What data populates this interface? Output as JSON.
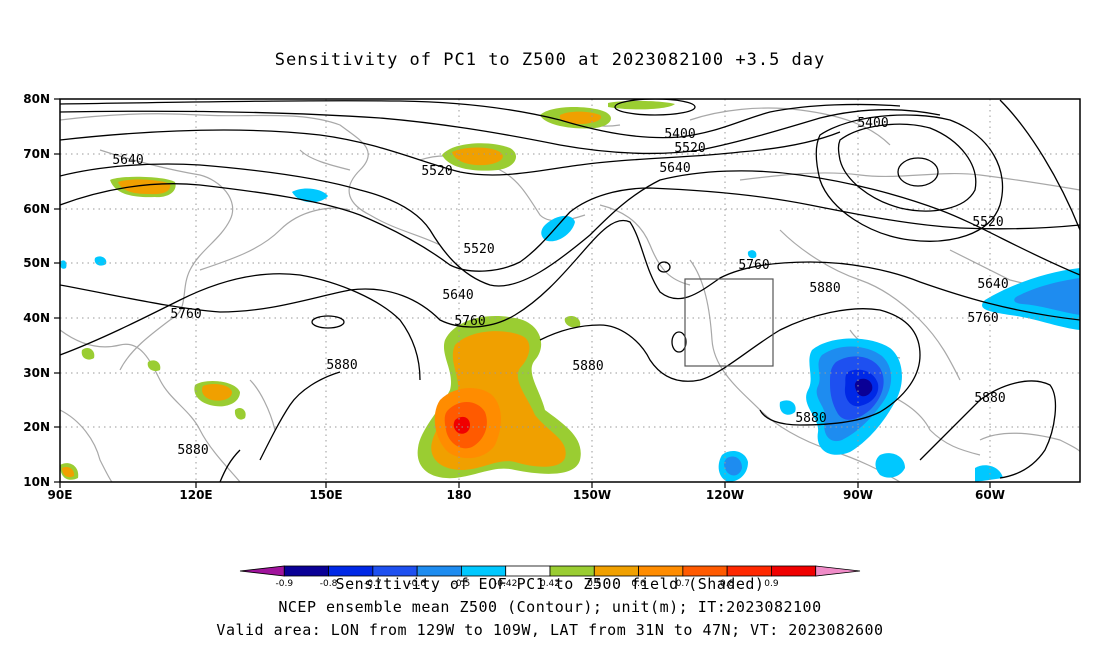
{
  "title": "Sensitivity of PC1 to Z500 at 2023082100 +3.5 day",
  "lat_labels": [
    "80N",
    "70N",
    "60N",
    "50N",
    "40N",
    "30N",
    "20N",
    "10N"
  ],
  "lon_labels": [
    "90E",
    "120E",
    "150E",
    "180",
    "150W",
    "120W",
    "90W",
    "60W"
  ],
  "contour_labels": [
    {
      "text": "5640"
    },
    {
      "text": "5520"
    },
    {
      "text": "5400"
    },
    {
      "text": "5520"
    },
    {
      "text": "5640"
    },
    {
      "text": "5400"
    },
    {
      "text": "5520"
    },
    {
      "text": "5760"
    },
    {
      "text": "5640"
    },
    {
      "text": "5760"
    },
    {
      "text": "5880"
    },
    {
      "text": "5880"
    },
    {
      "text": "5880"
    },
    {
      "text": "5880"
    },
    {
      "text": "5880"
    },
    {
      "text": "5880"
    },
    {
      "text": "5760"
    },
    {
      "text": "5640"
    },
    {
      "text": "5520"
    },
    {
      "text": "5760"
    }
  ],
  "colorbar": {
    "colors": [
      "#a0149c",
      "#0a0096",
      "#0028e6",
      "#1e50f0",
      "#1e8cf0",
      "#00c8ff",
      "#ffffff",
      "#9acd32",
      "#f0a000",
      "#ff8c00",
      "#ff5a00",
      "#ff2800",
      "#f00000",
      "#f08cc8"
    ],
    "ticks": [
      "-0.9",
      "-0.8",
      "-0.7",
      "-0.6",
      "-0.5",
      "-0.42",
      "0.42",
      "0.5",
      "0.6",
      "0.7",
      "0.8",
      "0.9"
    ]
  },
  "caption1": "Sensitivity of EOF PC1 to Z500 field (Shaded)",
  "caption2": "NCEP ensemble mean Z500 (Contour); unit(m); IT:2023082100",
  "caption3": "Valid area: LON from 129W to 109W, LAT from 31N to 47N; VT: 2023082600"
}
